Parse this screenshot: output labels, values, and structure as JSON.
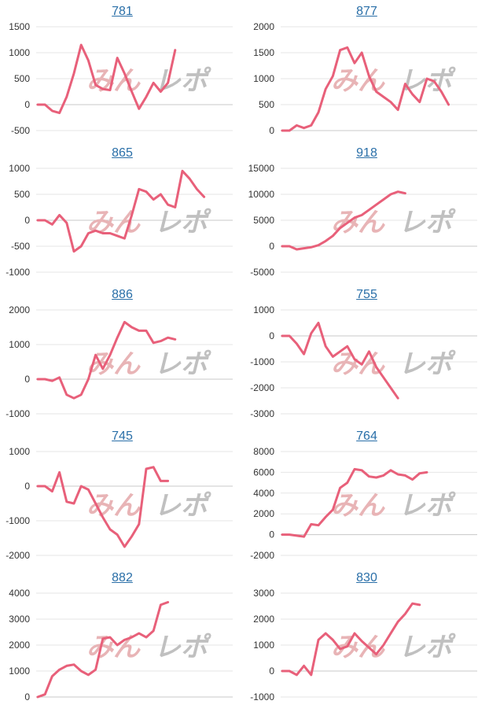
{
  "colors": {
    "series": "#e8607a",
    "title_link": "#2a6fa8",
    "watermark_pink": "#e8b4b6",
    "watermark_gray": "#c0c0c0"
  },
  "watermark": {
    "left": "みん",
    "right": "レポ"
  },
  "chart_data": [
    {
      "type": "line",
      "title": "781",
      "ylim": [
        -500,
        1500
      ],
      "yticks": [
        -500,
        0,
        500,
        1000,
        1500
      ],
      "series": [
        {
          "values": [
            0,
            0,
            -120,
            -160,
            150,
            600,
            1150,
            850,
            380,
            300,
            280,
            900,
            600,
            250,
            -80,
            150,
            420,
            250,
            420,
            1050
          ]
        }
      ]
    },
    {
      "type": "line",
      "title": "877",
      "ylim": [
        0,
        2000
      ],
      "yticks": [
        0,
        500,
        1000,
        1500,
        2000
      ],
      "series": [
        {
          "values": [
            0,
            0,
            100,
            50,
            100,
            350,
            800,
            1050,
            1550,
            1600,
            1300,
            1500,
            1050,
            750,
            650,
            550,
            400,
            900,
            700,
            550,
            1000,
            950,
            750,
            500
          ]
        }
      ]
    },
    {
      "type": "line",
      "title": "865",
      "ylim": [
        -1000,
        1000
      ],
      "yticks": [
        -1000,
        -500,
        0,
        500,
        1000
      ],
      "series": [
        {
          "values": [
            0,
            0,
            -80,
            100,
            -50,
            -600,
            -500,
            -250,
            -200,
            -250,
            -250,
            -300,
            -350,
            100,
            600,
            550,
            400,
            500,
            300,
            250,
            950,
            800,
            600,
            450
          ]
        }
      ]
    },
    {
      "type": "line",
      "title": "918",
      "ylim": [
        -5000,
        15000
      ],
      "yticks": [
        -5000,
        0,
        5000,
        10000,
        15000
      ],
      "series": [
        {
          "values": [
            0,
            0,
            -600,
            -400,
            -200,
            200,
            1000,
            2000,
            3500,
            4500,
            5500,
            6000,
            7000,
            8000,
            9000,
            10000,
            10500,
            10200
          ]
        }
      ]
    },
    {
      "type": "line",
      "title": "886",
      "ylim": [
        -1000,
        2000
      ],
      "yticks": [
        -1000,
        0,
        1000,
        2000
      ],
      "series": [
        {
          "values": [
            0,
            0,
            -50,
            50,
            -450,
            -550,
            -450,
            0,
            700,
            300,
            700,
            1200,
            1650,
            1500,
            1400,
            1400,
            1050,
            1100,
            1200,
            1150
          ]
        }
      ]
    },
    {
      "type": "line",
      "title": "755",
      "ylim": [
        -3000,
        1000
      ],
      "yticks": [
        -3000,
        -2000,
        -1000,
        0,
        1000
      ],
      "series": [
        {
          "values": [
            0,
            0,
            -300,
            -700,
            100,
            500,
            -400,
            -800,
            -600,
            -400,
            -900,
            -1100,
            -600,
            -1200,
            -1600,
            -2000,
            -2400
          ]
        }
      ]
    },
    {
      "type": "line",
      "title": "745",
      "ylim": [
        -2000,
        1000
      ],
      "yticks": [
        -2000,
        -1000,
        0,
        1000
      ],
      "series": [
        {
          "values": [
            0,
            0,
            -150,
            400,
            -450,
            -500,
            0,
            -100,
            -500,
            -900,
            -1250,
            -1400,
            -1750,
            -1450,
            -1100,
            500,
            550,
            150,
            150
          ]
        }
      ]
    },
    {
      "type": "line",
      "title": "764",
      "ylim": [
        -2000,
        8000
      ],
      "yticks": [
        -2000,
        0,
        2000,
        4000,
        6000,
        8000
      ],
      "series": [
        {
          "values": [
            0,
            0,
            -100,
            -200,
            1000,
            900,
            1700,
            2400,
            4500,
            5000,
            6300,
            6200,
            5600,
            5500,
            5700,
            6200,
            5800,
            5700,
            5300,
            5900,
            6000
          ]
        }
      ]
    },
    {
      "type": "line",
      "title": "882",
      "ylim": [
        0,
        4000
      ],
      "yticks": [
        0,
        1000,
        2000,
        3000,
        4000
      ],
      "series": [
        {
          "values": [
            0,
            100,
            800,
            1050,
            1200,
            1250,
            1000,
            850,
            1050,
            2250,
            2300,
            2000,
            2200,
            2300,
            2450,
            2300,
            2550,
            3550,
            3650
          ]
        }
      ]
    },
    {
      "type": "line",
      "title": "830",
      "ylim": [
        -1000,
        3000
      ],
      "yticks": [
        -1000,
        0,
        1000,
        2000,
        3000
      ],
      "series": [
        {
          "values": [
            0,
            0,
            -150,
            200,
            -150,
            1200,
            1450,
            1200,
            850,
            950,
            1450,
            1150,
            900,
            650,
            1000,
            1450,
            1900,
            2200,
            2600,
            2550
          ]
        }
      ]
    }
  ]
}
